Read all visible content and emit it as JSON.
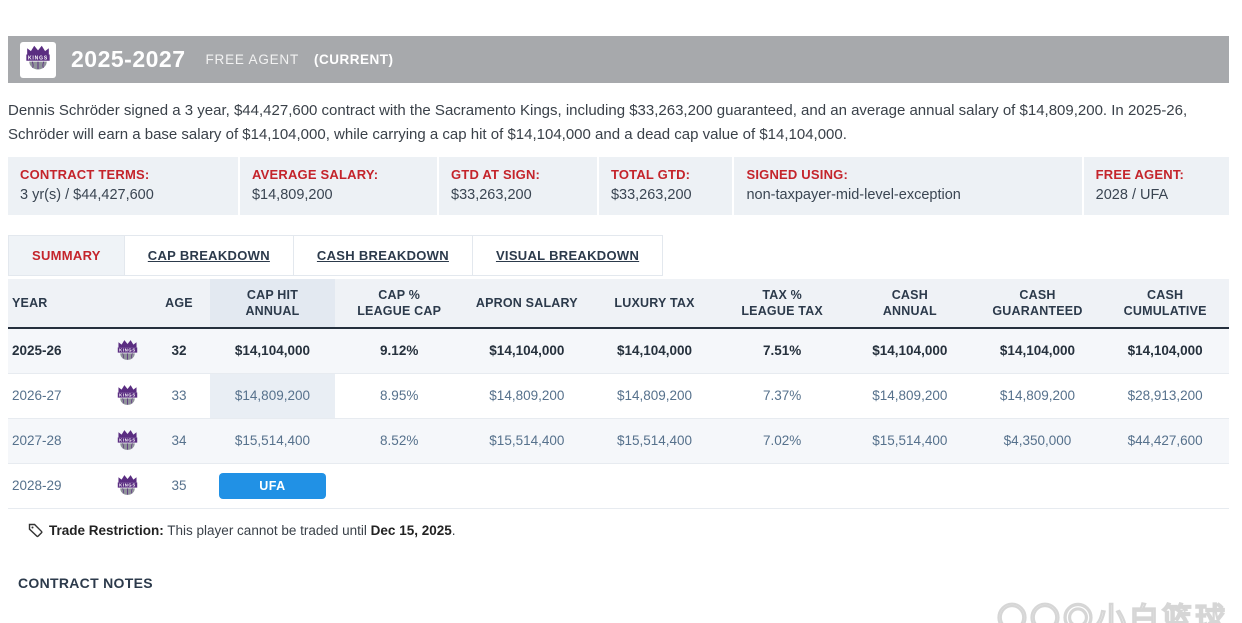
{
  "header": {
    "era": "2025-2027",
    "status": "FREE AGENT",
    "current": "(CURRENT)",
    "team_logo": "sacramento-kings-logo",
    "team_name_on_logo": "KINGS"
  },
  "summary_text": "Dennis Schröder signed a 3 year, $44,427,600 contract with the Sacramento Kings, including $33,263,200 guaranteed, and an average annual salary of $14,809,200. In 2025-26, Schröder will earn a base salary of $14,104,000, while carrying a cap hit of $14,104,000 and a dead cap value of $14,104,000.",
  "contract_terms": [
    {
      "label": "CONTRACT TERMS:",
      "value": "3 yr(s) / $44,427,600",
      "width": "19.0%"
    },
    {
      "label": "AVERAGE SALARY:",
      "value": "$14,809,200",
      "width": "16.3%"
    },
    {
      "label": "GTD AT SIGN:",
      "value": "$33,263,200",
      "width": "13.1%"
    },
    {
      "label": "TOTAL GTD:",
      "value": "$33,263,200",
      "width": "11.1%"
    },
    {
      "label": "SIGNED USING:",
      "value": "non-taxpayer-mid-level-exception",
      "width": "28.6%"
    },
    {
      "label": "FREE AGENT:",
      "value": "2028 / UFA",
      "width": "11.9%"
    }
  ],
  "tabs": [
    {
      "label": "SUMMARY",
      "active": true
    },
    {
      "label": "CAP BREAKDOWN",
      "active": false
    },
    {
      "label": "CASH BREAKDOWN",
      "active": false
    },
    {
      "label": "VISUAL BREAKDOWN",
      "active": false
    }
  ],
  "table": {
    "columns": [
      {
        "lines": [
          "YEAR"
        ],
        "kind": "year",
        "width": "8%"
      },
      {
        "lines": [
          ""
        ],
        "kind": "team",
        "width": "3.5%"
      },
      {
        "lines": [
          "AGE"
        ],
        "kind": "age",
        "width": "5%"
      },
      {
        "lines": [
          "CAP HIT",
          "ANNUAL"
        ],
        "kind": "cap",
        "width": "10.3%"
      },
      {
        "lines": [
          "CAP %",
          "LEAGUE CAP"
        ],
        "kind": "num",
        "width": "10.45%"
      },
      {
        "lines": [
          "APRON SALARY"
        ],
        "kind": "num",
        "width": "10.45%"
      },
      {
        "lines": [
          "LUXURY TAX"
        ],
        "kind": "num",
        "width": "10.45%"
      },
      {
        "lines": [
          "TAX %",
          "LEAGUE TAX"
        ],
        "kind": "num",
        "width": "10.45%"
      },
      {
        "lines": [
          "CASH",
          "ANNUAL"
        ],
        "kind": "num",
        "width": "10.45%"
      },
      {
        "lines": [
          "CASH",
          "GUARANTEED"
        ],
        "kind": "num",
        "width": "10.45%"
      },
      {
        "lines": [
          "CASH",
          "CUMULATIVE"
        ],
        "kind": "num",
        "width": "10.45%"
      }
    ],
    "rows": [
      {
        "year": "2025-26",
        "age": "32",
        "bold": true,
        "striped": true,
        "cells": [
          "$14,104,000",
          "9.12%",
          "$14,104,000",
          "$14,104,000",
          "7.51%",
          "$14,104,000",
          "$14,104,000",
          "$14,104,000"
        ]
      },
      {
        "year": "2026-27",
        "age": "33",
        "bold": false,
        "striped": false,
        "cells": [
          "$14,809,200",
          "8.95%",
          "$14,809,200",
          "$14,809,200",
          "7.37%",
          "$14,809,200",
          "$14,809,200",
          "$28,913,200"
        ]
      },
      {
        "year": "2027-28",
        "age": "34",
        "bold": false,
        "striped": true,
        "cells": [
          "$15,514,400",
          "8.52%",
          "$15,514,400",
          "$15,514,400",
          "7.02%",
          "$15,514,400",
          "$4,350,000",
          "$44,427,600"
        ]
      },
      {
        "year": "2028-29",
        "age": "35",
        "bold": false,
        "striped": false,
        "badge": "UFA",
        "cells": []
      }
    ]
  },
  "trade_restriction": {
    "label": "Trade Restriction:",
    "text": " This player cannot be traded until ",
    "date": "Dec 15, 2025",
    "suffix": "."
  },
  "contract_notes_title": "CONTRACT NOTES",
  "watermark": "〇〇◎小白篮球",
  "colors": {
    "accent_red": "#c4242b",
    "badge_blue": "#2191e5",
    "bar_gray": "#a7a9ac",
    "strip_bg": "#edf1f5",
    "kings_purple": "#5a2d81"
  }
}
